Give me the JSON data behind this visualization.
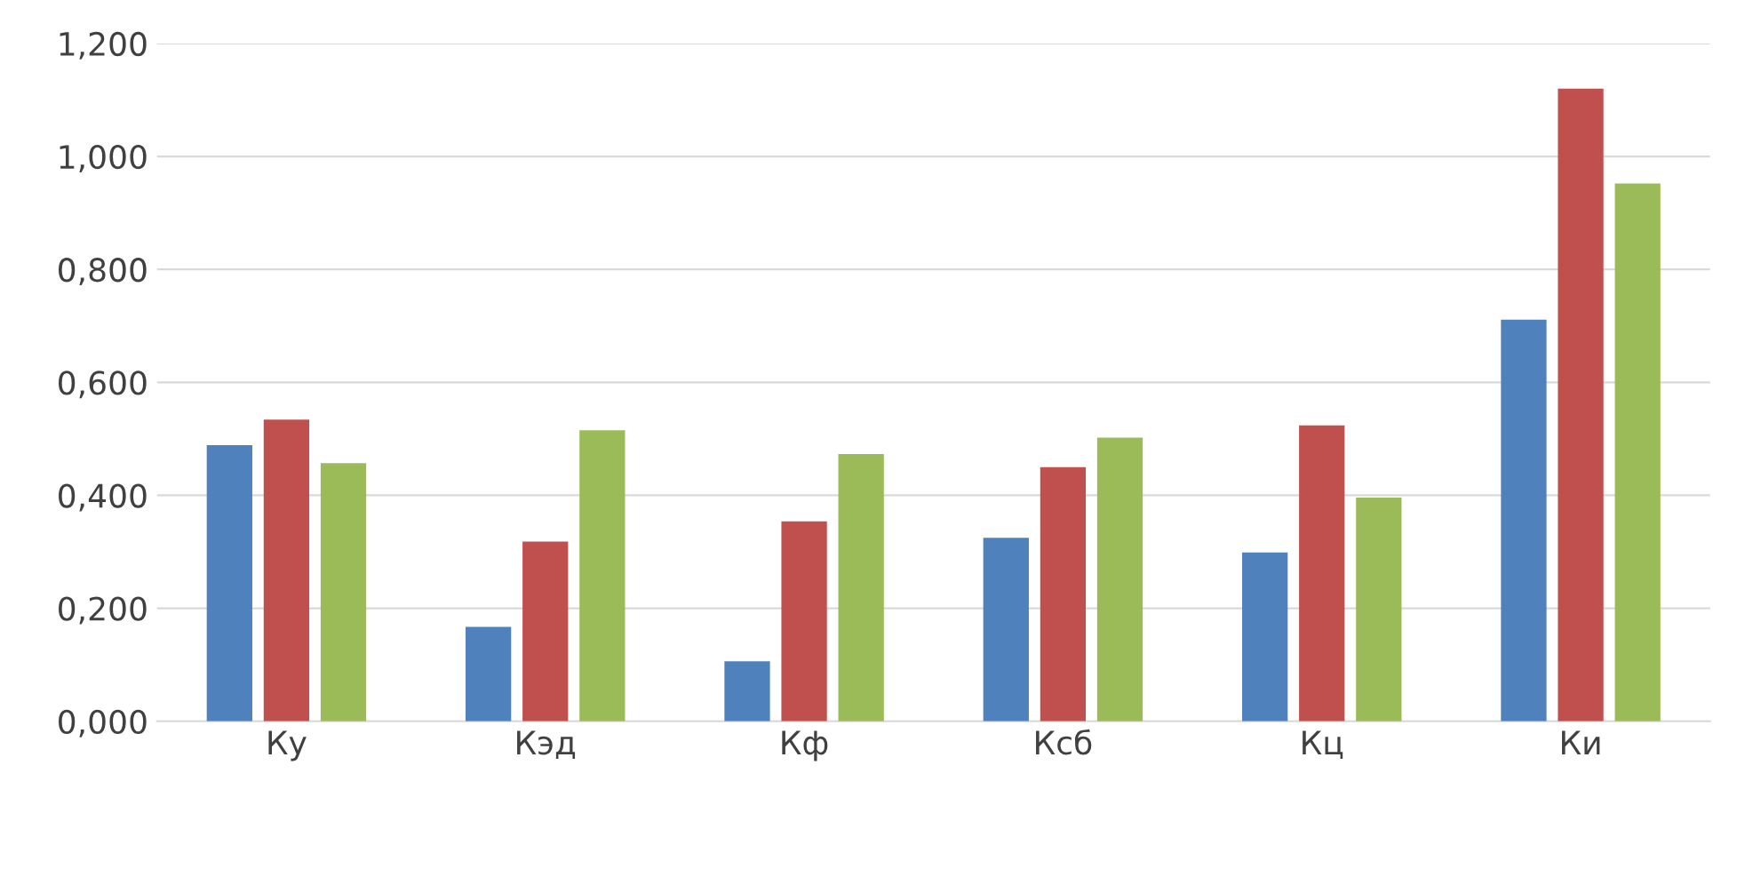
{
  "chart_data": {
    "type": "bar",
    "categories": [
      "Ку",
      "Кэд",
      "Кф",
      "Ксб",
      "Кц",
      "Ки"
    ],
    "series": [
      {
        "color": "#4f81bd",
        "values": [
          0.489,
          0.167,
          0.106,
          0.325,
          0.299,
          0.711
        ]
      },
      {
        "color": "#c0504d",
        "values": [
          0.534,
          0.318,
          0.354,
          0.45,
          0.524,
          1.12
        ]
      },
      {
        "color": "#9bbb59",
        "values": [
          0.457,
          0.515,
          0.473,
          0.502,
          0.396,
          0.952
        ]
      }
    ],
    "ylim": [
      0,
      1.2
    ],
    "yticks": [
      {
        "value": 0,
        "label": "0,000"
      },
      {
        "value": 0.2,
        "label": "0,200"
      },
      {
        "value": 0.4,
        "label": "0,400"
      },
      {
        "value": 0.6,
        "label": "0,600"
      },
      {
        "value": 0.8,
        "label": "0,800"
      },
      {
        "value": 1.0,
        "label": "1,000"
      },
      {
        "value": 1.2,
        "label": "1,200"
      }
    ],
    "grid": "y"
  }
}
